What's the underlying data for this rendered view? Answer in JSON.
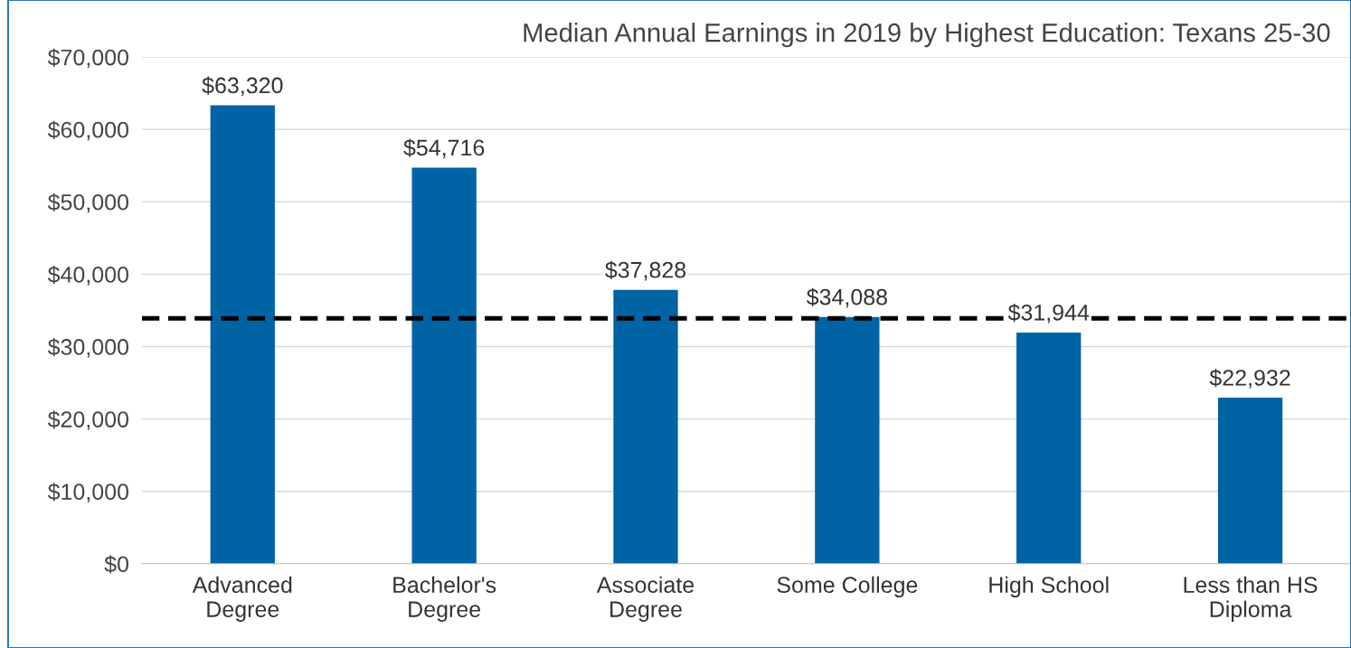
{
  "chart_data": {
    "type": "bar",
    "title": "Median Annual Earnings in 2019 by Highest Education: Texans 25-30",
    "categories": [
      "Advanced\nDegree",
      "Bachelor's\nDegree",
      "Associate\nDegree",
      "Some College",
      "High School",
      "Less than HS\nDiploma"
    ],
    "values": [
      63320,
      54716,
      37828,
      34088,
      31944,
      22932
    ],
    "value_labels": [
      "$63,320",
      "$54,716",
      "$37,828",
      "$34,088",
      "$31,944",
      "$22,932"
    ],
    "color": "#0063a6",
    "ylim": [
      0,
      70000
    ],
    "yticks": [
      {
        "value": 0,
        "label": "$0"
      },
      {
        "value": 10000,
        "label": "$10,000"
      },
      {
        "value": 20000,
        "label": "$20,000"
      },
      {
        "value": 30000,
        "label": "$30,000"
      },
      {
        "value": 40000,
        "label": "$40,000"
      },
      {
        "value": 50000,
        "label": "$50,000"
      },
      {
        "value": 60000,
        "label": "$60,000"
      },
      {
        "value": 70000,
        "label": "$70,000"
      }
    ],
    "grid": "y",
    "ref_lines": [
      {
        "axis": "y",
        "value": 33900,
        "color": "#000000",
        "line_style": "dashed"
      }
    ]
  }
}
